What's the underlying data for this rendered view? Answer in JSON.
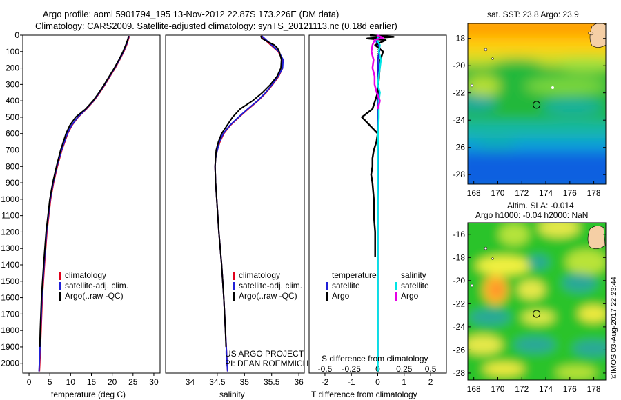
{
  "header": {
    "line1": "Argo profile: aoml 5901794_195 13-Nov-2012 22.87S 173.226E (DM data)",
    "line2": "Climatology: CARS2009. Satellite-adjusted climatology: synTS_20121113.nc (0.18d earlier)"
  },
  "colors": {
    "climatology": "#e0001b",
    "satellite": "#1f1fd6",
    "argo": "#000000",
    "salinity_satellite": "#00e5e5",
    "salinity_argo": "#e600e6"
  },
  "chart_data": [
    {
      "type": "line",
      "id": "temperature-profile",
      "xlabel": "temperature (deg C)",
      "ylabel": "",
      "xlim": [
        -1.5,
        31.5
      ],
      "ylim": [
        2060,
        0
      ],
      "xticks": [
        0,
        5,
        10,
        15,
        20,
        25,
        30
      ],
      "yticks": [
        0,
        100,
        200,
        300,
        400,
        500,
        600,
        700,
        800,
        900,
        1000,
        1100,
        1200,
        1300,
        1400,
        1500,
        1600,
        1700,
        1800,
        1900,
        2000
      ],
      "legend": [
        "climatology",
        "satellite-adj. clim.",
        "Argo(..raw -QC)"
      ],
      "series": [
        {
          "name": "climatology",
          "color": "#e0001b",
          "depth": [
            5,
            50,
            100,
            150,
            200,
            250,
            300,
            350,
            400,
            450,
            500,
            550,
            600,
            700,
            800,
            900,
            1000,
            1200,
            1400,
            1600,
            1800,
            2000,
            2050
          ],
          "values": [
            24.1,
            23.6,
            22.8,
            21.8,
            20.7,
            19.5,
            18.3,
            17.0,
            15.6,
            13.8,
            11.8,
            10.3,
            9.3,
            7.9,
            6.8,
            5.9,
            5.2,
            4.3,
            3.7,
            3.2,
            2.9,
            2.6,
            2.5
          ]
        },
        {
          "name": "satellite-adj. clim.",
          "color": "#1f1fd6",
          "depth": [
            5,
            50,
            100,
            150,
            200,
            250,
            300,
            350,
            400,
            450,
            500,
            550,
            600,
            700,
            800,
            900,
            1000,
            1200,
            1400,
            1600,
            1800,
            2000,
            2050
          ],
          "values": [
            24.0,
            23.5,
            22.7,
            21.7,
            20.6,
            19.4,
            18.2,
            16.9,
            15.5,
            13.7,
            11.7,
            10.2,
            9.2,
            7.8,
            6.7,
            5.8,
            5.1,
            4.2,
            3.6,
            3.1,
            2.8,
            2.5,
            2.4
          ]
        },
        {
          "name": "Argo(..raw -QC)",
          "color": "#000000",
          "depth": [
            5,
            20,
            50,
            100,
            150,
            200,
            250,
            300,
            350,
            400,
            450,
            500,
            550,
            600,
            700,
            800,
            900,
            1000,
            1200,
            1400,
            1600,
            1800,
            1900
          ],
          "values": [
            23.9,
            23.8,
            23.4,
            22.6,
            21.6,
            20.5,
            19.3,
            18.1,
            16.8,
            15.4,
            13.6,
            11.2,
            9.8,
            8.9,
            7.6,
            6.6,
            5.7,
            5.0,
            4.1,
            3.5,
            3.0,
            2.7,
            2.6
          ]
        }
      ]
    },
    {
      "type": "line",
      "id": "salinity-profile",
      "xlabel": "salinity",
      "xlim": [
        33.55,
        36.1
      ],
      "ylim": [
        2060,
        0
      ],
      "xticks": [
        34,
        34.5,
        35,
        35.5,
        36
      ],
      "legend": [
        "climatology",
        "satellite-adj. clim.",
        "Argo(..raw -QC)"
      ],
      "annotations": [
        "US ARGO PROJECT",
        "PI: DEAN ROEMMICH"
      ],
      "series": [
        {
          "name": "climatology",
          "color": "#e0001b",
          "depth": [
            5,
            50,
            100,
            150,
            200,
            250,
            300,
            350,
            400,
            450,
            500,
            550,
            600,
            650,
            700,
            750,
            800,
            900,
            1000,
            1200,
            1400,
            1600,
            1800,
            2000,
            2050
          ],
          "values": [
            35.3,
            35.45,
            35.62,
            35.7,
            35.7,
            35.63,
            35.52,
            35.4,
            35.25,
            35.07,
            34.9,
            34.74,
            34.62,
            34.55,
            34.5,
            34.47,
            34.46,
            34.47,
            34.49,
            34.53,
            34.58,
            34.62,
            34.65,
            34.68,
            34.69
          ]
        },
        {
          "name": "satellite-adj. clim.",
          "color": "#1f1fd6",
          "depth": [
            5,
            50,
            100,
            150,
            200,
            250,
            300,
            350,
            400,
            450,
            500,
            550,
            600,
            650,
            700,
            750,
            800,
            900,
            1000,
            1200,
            1400,
            1600,
            1800,
            2000,
            2050
          ],
          "values": [
            35.32,
            35.47,
            35.63,
            35.71,
            35.7,
            35.62,
            35.51,
            35.39,
            35.24,
            35.06,
            34.89,
            34.73,
            34.61,
            34.54,
            34.5,
            34.47,
            34.46,
            34.47,
            34.49,
            34.53,
            34.58,
            34.62,
            34.65,
            34.68,
            34.69
          ]
        },
        {
          "name": "Argo(..raw -QC)",
          "color": "#000000",
          "depth": [
            5,
            20,
            40,
            60,
            80,
            100,
            150,
            200,
            250,
            300,
            350,
            400,
            450,
            500,
            550,
            600,
            650,
            700,
            800,
            900,
            1000,
            1200,
            1400,
            1600,
            1800,
            1900
          ],
          "values": [
            35.3,
            35.32,
            35.43,
            35.55,
            35.61,
            35.64,
            35.68,
            35.67,
            35.6,
            35.48,
            35.33,
            35.15,
            34.92,
            34.78,
            34.68,
            34.58,
            34.52,
            34.48,
            34.46,
            34.47,
            34.49,
            34.53,
            34.58,
            34.62,
            34.65,
            34.66
          ]
        }
      ]
    },
    {
      "type": "line",
      "id": "difference-profile",
      "xlabel": "T difference from climatology",
      "xlabel_top": "S difference from climatology",
      "xlim": [
        -2.6,
        2.6
      ],
      "ylim": [
        2060,
        0
      ],
      "xticks": [
        -2,
        -1,
        0,
        1,
        2
      ],
      "xticks_top": [
        -0.5,
        -0.25,
        0,
        0.25,
        0.5
      ],
      "legend_temperature": [
        "temperature",
        "satellite",
        "Argo"
      ],
      "legend_salinity": [
        "salinity",
        "satellite",
        "Argo"
      ],
      "series": [
        {
          "name": "temperature satellite",
          "color": "#1f1fd6",
          "depth": [
            0,
            40,
            80,
            150,
            300,
            500,
            800,
            1000,
            1300,
            1600,
            2000
          ],
          "values": [
            0.05,
            -0.05,
            0.08,
            0.0,
            0.03,
            0.0,
            0.02,
            0.0,
            0.0,
            0.0,
            0.0
          ]
        },
        {
          "name": "temperature Argo",
          "color": "#000000",
          "depth": [
            0,
            10,
            20,
            30,
            60,
            100,
            150,
            250,
            350,
            450,
            500,
            550,
            600,
            650,
            700,
            750,
            800,
            850,
            900,
            1000,
            1100,
            1200,
            1300,
            1350
          ],
          "values": [
            -0.3,
            0.6,
            -0.4,
            0.3,
            -0.1,
            0.2,
            0.1,
            0.05,
            0.0,
            -0.2,
            -0.6,
            -0.3,
            0.0,
            -0.05,
            -0.15,
            -0.2,
            -0.2,
            -0.25,
            -0.2,
            -0.15,
            -0.15,
            -0.1,
            -0.1,
            -0.1
          ]
        },
        {
          "name": "salinity satellite",
          "color": "#00e5e5",
          "depth": [
            0,
            30,
            60,
            100,
            150,
            200,
            250,
            300,
            350,
            400,
            500,
            700,
            1000,
            1500,
            2050
          ],
          "values": [
            0.01,
            -0.01,
            0.02,
            0.01,
            0.03,
            0.02,
            0.01,
            0.0,
            0.02,
            0.01,
            0.01,
            0.0,
            0.0,
            0.0,
            0.0
          ]
        },
        {
          "name": "salinity Argo",
          "color": "#e600e6",
          "depth": [
            0,
            15,
            30,
            60,
            100,
            150,
            200,
            250,
            300,
            350,
            400,
            450
          ],
          "values": [
            -0.01,
            0.05,
            -0.03,
            -0.05,
            -0.06,
            -0.04,
            -0.05,
            -0.03,
            -0.03,
            -0.01,
            0.02,
            0.0
          ]
        }
      ]
    }
  ],
  "maps": {
    "sst": {
      "title": "sat. SST: 23.8  Argo: 23.9",
      "lat_ticks": [
        "-18",
        "-20",
        "-22",
        "-24",
        "-26",
        "-28"
      ],
      "lon_ticks": [
        "168",
        "170",
        "172",
        "174",
        "176",
        "178"
      ],
      "float_lat": -22.87,
      "float_lon": 173.226
    },
    "sla": {
      "title_line1": "Altim. SLA: -0.014",
      "title_line2": "Argo h1000: -0.04  h2000: NaN",
      "lat_ticks": [
        "-16",
        "-18",
        "-20",
        "-22",
        "-24",
        "-26",
        "-28"
      ],
      "lon_ticks": [
        "168",
        "170",
        "172",
        "174",
        "176",
        "178"
      ],
      "float_lat": -22.87,
      "float_lon": 173.226
    }
  },
  "footer": {
    "credit": "©IMOS 03-Aug-2017 22:23:44"
  }
}
